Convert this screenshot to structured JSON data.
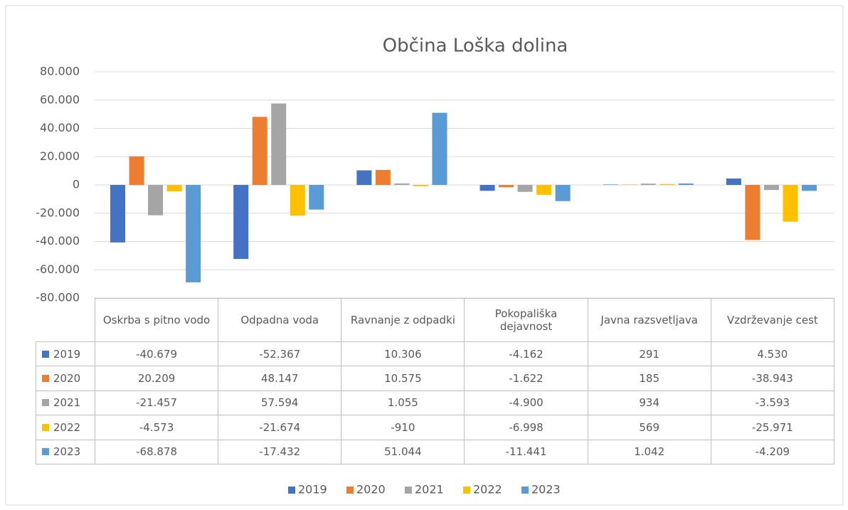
{
  "chart_data": {
    "type": "bar",
    "title": "Občina Loška dolina",
    "categories": [
      "Oskrba s pitno vodo",
      "Odpadna voda",
      "Ravnanje z odpadki",
      "Pokopališka dejavnost",
      "Javna razsvetljava",
      "Vzdrževanje cest"
    ],
    "series": [
      {
        "name": "2019",
        "color": "#4472c4",
        "values": [
          -40679,
          -52367,
          10306,
          -4162,
          291,
          4530
        ],
        "value_labels": [
          "-40.679",
          "-52.367",
          "10.306",
          "-4.162",
          "291",
          "4.530"
        ]
      },
      {
        "name": "2020",
        "color": "#ed7d31",
        "values": [
          20209,
          48147,
          10575,
          -1622,
          185,
          -38943
        ],
        "value_labels": [
          "20.209",
          "48.147",
          "10.575",
          "-1.622",
          "185",
          "-38.943"
        ]
      },
      {
        "name": "2021",
        "color": "#a5a5a5",
        "values": [
          -21457,
          57594,
          1055,
          -4900,
          934,
          -3593
        ],
        "value_labels": [
          "-21.457",
          "57.594",
          "1.055",
          "-4.900",
          "934",
          "-3.593"
        ]
      },
      {
        "name": "2022",
        "color": "#ffc000",
        "values": [
          -4573,
          -21674,
          -910,
          -6998,
          569,
          -25971
        ],
        "value_labels": [
          "-4.573",
          "-21.674",
          "-910",
          "-6.998",
          "569",
          "-25.971"
        ]
      },
      {
        "name": "2023",
        "color": "#5b9bd5",
        "values": [
          -68878,
          -17432,
          51044,
          -11441,
          1042,
          -4209
        ],
        "value_labels": [
          "-68.878",
          "-17.432",
          "51.044",
          "-11.441",
          "1.042",
          "-4.209"
        ]
      }
    ],
    "ylim": [
      -80000,
      80000
    ],
    "yticks": [
      {
        "value": -80000,
        "label": "-80.000"
      },
      {
        "value": -60000,
        "label": "-60.000"
      },
      {
        "value": -40000,
        "label": "-40.000"
      },
      {
        "value": -20000,
        "label": "-20.000"
      },
      0,
      {
        "value": 20000,
        "label": "20.000"
      },
      {
        "value": 40000,
        "label": "40.000"
      },
      {
        "value": 60000,
        "label": "60.000"
      },
      {
        "value": 80000,
        "label": "80.000"
      }
    ],
    "grid": true,
    "legend": "bottom"
  }
}
